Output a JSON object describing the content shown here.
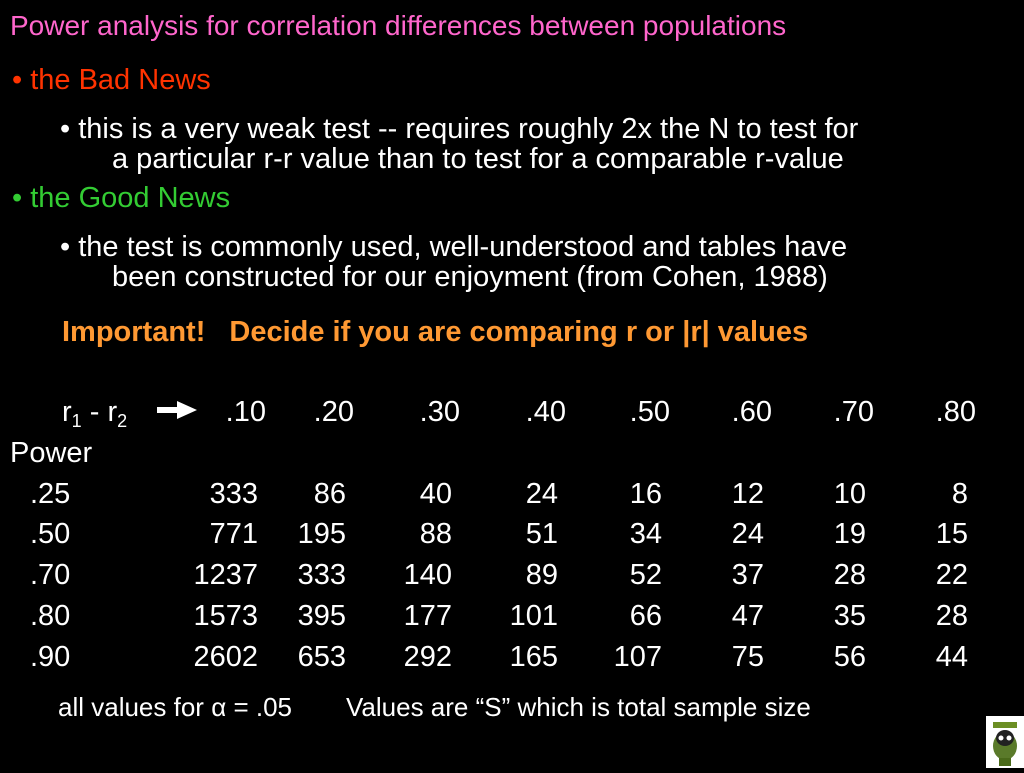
{
  "title": "Power analysis for correlation differences between populations",
  "bad_news": {
    "bullet": "•",
    "label": "the Bad News",
    "detail_line1": "• this is a very weak test -- requires roughly 2x the N to test for",
    "detail_line2": "a particular r-r value than to test for a comparable r-value"
  },
  "good_news": {
    "bullet": "•",
    "label": "the Good News",
    "detail_line1": "• the test is commonly used, well-understood and tables have",
    "detail_line2": "been constructed for our enjoyment (from Cohen, 1988)"
  },
  "important": {
    "lead": "Important!",
    "text": "Decide if you are comparing r or |r| values"
  },
  "table": {
    "r_label": "r",
    "sub1": "1",
    "minus": " - r",
    "sub2": "2",
    "power_label": "Power",
    "columns": [
      ".10",
      ".20",
      ".30",
      ".40",
      ".50",
      ".60",
      ".70",
      ".80"
    ],
    "rows": [
      {
        "power": ".25",
        "values": [
          "333",
          "86",
          "40",
          "24",
          "16",
          "12",
          "10",
          "8"
        ]
      },
      {
        "power": ".50",
        "values": [
          "771",
          "195",
          "88",
          "51",
          "34",
          "24",
          "19",
          "15"
        ]
      },
      {
        "power": ".70",
        "values": [
          "1237",
          "333",
          "140",
          "89",
          "52",
          "37",
          "28",
          "22"
        ]
      },
      {
        "power": ".80",
        "values": [
          "1573",
          "395",
          "177",
          "101",
          "66",
          "47",
          "35",
          "28"
        ]
      },
      {
        "power": ".90",
        "values": [
          "2602",
          "653",
          "292",
          "165",
          "107",
          "75",
          "56",
          "44"
        ]
      }
    ]
  },
  "footer": {
    "alpha_note_prefix": "all values for ",
    "alpha_symbol": "α",
    "alpha_note_suffix": " = .05",
    "sample_note": "Values are “S” which is total sample size"
  },
  "colors": {
    "title": "#ff66cc",
    "bad": "#ff3300",
    "good": "#33cc33",
    "important": "#ff9933"
  },
  "icons": {
    "arrow": "right-arrow-icon",
    "logo": "cartoon-logo-icon"
  }
}
